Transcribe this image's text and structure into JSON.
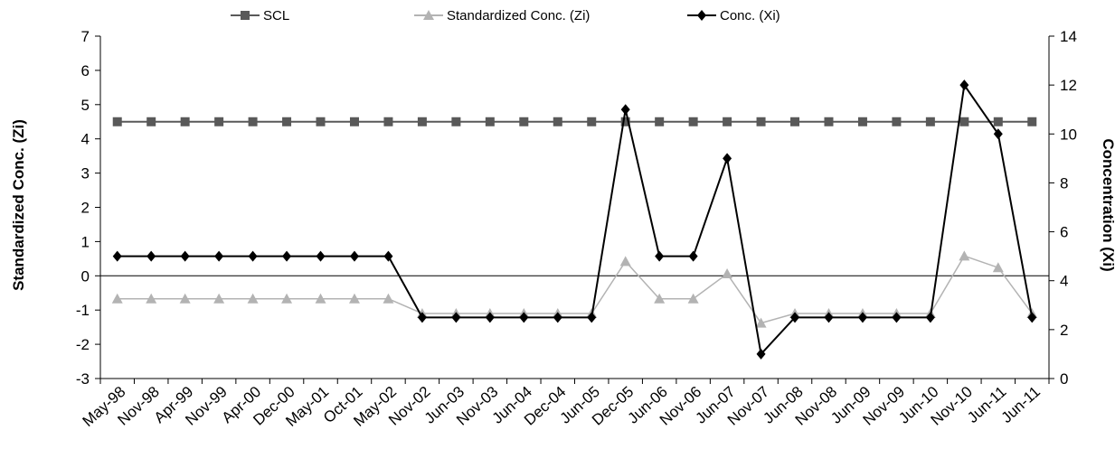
{
  "chart_data": {
    "type": "line",
    "categories": [
      "May-98",
      "Nov-98",
      "Apr-99",
      "Nov-99",
      "Apr-00",
      "Dec-00",
      "May-01",
      "Oct-01",
      "May-02",
      "Nov-02",
      "Jun-03",
      "Nov-03",
      "Jun-04",
      "Dec-04",
      "Jun-05",
      "Dec-05",
      "Jun-06",
      "Nov-06",
      "Jun-07",
      "Nov-07",
      "Jun-08",
      "Nov-08",
      "Jun-09",
      "Nov-09",
      "Jun-10",
      "Nov-10",
      "Jun-11",
      "Jun-11"
    ],
    "y_left": {
      "label": "Standardized Conc. (Zi)",
      "ylim": [
        -3,
        7
      ],
      "ticks": [
        -3,
        -2,
        -1,
        0,
        1,
        2,
        3,
        4,
        5,
        6,
        7
      ]
    },
    "y_right": {
      "label": "Concentration (Xi)",
      "ylim": [
        0,
        14
      ],
      "ticks": [
        0,
        2,
        4,
        6,
        8,
        10,
        12,
        14
      ]
    },
    "legend_position": "top",
    "grid": false,
    "series": [
      {
        "name": "SCL",
        "axis": "left",
        "marker": "square",
        "color": "#595959",
        "values": [
          4.5,
          4.5,
          4.5,
          4.5,
          4.5,
          4.5,
          4.5,
          4.5,
          4.5,
          4.5,
          4.5,
          4.5,
          4.5,
          4.5,
          4.5,
          4.5,
          4.5,
          4.5,
          4.5,
          4.5,
          4.5,
          4.5,
          4.5,
          4.5,
          4.5,
          4.5,
          4.5,
          4.5
        ]
      },
      {
        "name": "Standardized Conc. (Zi)",
        "axis": "left",
        "marker": "triangle",
        "color": "#b3b3b3",
        "values": [
          -0.67,
          -0.67,
          -0.67,
          -0.67,
          -0.67,
          -0.67,
          -0.67,
          -0.67,
          -0.67,
          -1.1,
          -1.1,
          -1.1,
          -1.1,
          -1.1,
          -1.1,
          0.42,
          -0.67,
          -0.67,
          0.06,
          -1.38,
          -1.1,
          -1.1,
          -1.1,
          -1.1,
          -1.1,
          0.58,
          0.24,
          -1.1
        ]
      },
      {
        "name": "Conc. (Xi)",
        "axis": "right",
        "marker": "diamond",
        "color": "#000000",
        "values": [
          5,
          5,
          5,
          5,
          5,
          5,
          5,
          5,
          5,
          2.5,
          2.5,
          2.5,
          2.5,
          2.5,
          2.5,
          11,
          5,
          5,
          9,
          1,
          2.5,
          2.5,
          2.5,
          2.5,
          2.5,
          12,
          10,
          2.5
        ]
      }
    ]
  }
}
